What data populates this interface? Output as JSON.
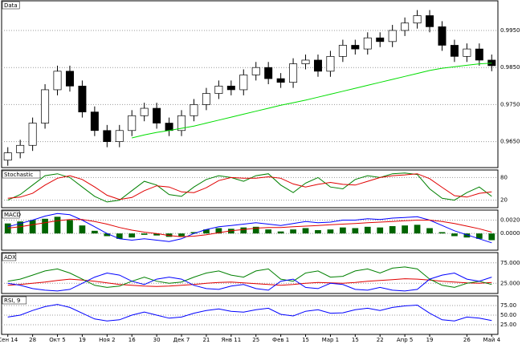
{
  "chart_data": [
    {
      "type": "candlestick",
      "title": "Data",
      "open": [
        0.96,
        0.962,
        0.964,
        0.97,
        0.979,
        0.984,
        0.98,
        0.973,
        0.968,
        0.965,
        0.968,
        0.972,
        0.974,
        0.97,
        0.968,
        0.972,
        0.975,
        0.978,
        0.98,
        0.979,
        0.983,
        0.985,
        0.982,
        0.981,
        0.986,
        0.987,
        0.984,
        0.988,
        0.991,
        0.99,
        0.993,
        0.992,
        0.995,
        0.997,
        0.999,
        0.996,
        0.991,
        0.988,
        0.99,
        0.987
      ],
      "high": [
        0.9635,
        0.9655,
        0.9715,
        0.9805,
        0.9855,
        0.9855,
        0.9815,
        0.9745,
        0.9695,
        0.9695,
        0.9735,
        0.9755,
        0.9755,
        0.9715,
        0.9735,
        0.9765,
        0.9795,
        0.9815,
        0.9815,
        0.9845,
        0.9865,
        0.9865,
        0.9835,
        0.9875,
        0.9885,
        0.9885,
        0.9895,
        0.9925,
        0.9925,
        0.9945,
        0.9945,
        0.9965,
        0.9985,
        1.0005,
        1.0005,
        0.9975,
        0.9925,
        0.9915,
        0.9915,
        0.9885
      ],
      "low": [
        0.9585,
        0.9605,
        0.9625,
        0.9685,
        0.9775,
        0.9785,
        0.9715,
        0.9665,
        0.9635,
        0.9635,
        0.9665,
        0.9705,
        0.9685,
        0.9665,
        0.9665,
        0.9705,
        0.9735,
        0.9765,
        0.9775,
        0.9775,
        0.9815,
        0.9805,
        0.9795,
        0.9795,
        0.9845,
        0.9825,
        0.9825,
        0.9865,
        0.9885,
        0.9885,
        0.9905,
        0.9905,
        0.9935,
        0.9955,
        0.9945,
        0.9895,
        0.9865,
        0.9865,
        0.9855,
        0.984
      ],
      "close": [
        0.962,
        0.964,
        0.97,
        0.979,
        0.984,
        0.98,
        0.973,
        0.968,
        0.965,
        0.968,
        0.972,
        0.974,
        0.97,
        0.968,
        0.972,
        0.975,
        0.978,
        0.98,
        0.979,
        0.983,
        0.985,
        0.982,
        0.981,
        0.986,
        0.987,
        0.984,
        0.988,
        0.991,
        0.99,
        0.993,
        0.992,
        0.995,
        0.997,
        0.999,
        0.996,
        0.991,
        0.988,
        0.99,
        0.987,
        0.9855
      ],
      "series": [
        {
          "color": "#00dd00",
          "values": [
            null,
            null,
            null,
            null,
            null,
            null,
            null,
            null,
            null,
            null,
            0.966,
            0.9668,
            0.9675,
            0.968,
            0.9686,
            0.9692,
            0.97,
            0.9708,
            0.9716,
            0.9724,
            0.9732,
            0.974,
            0.9748,
            0.9755,
            0.9762,
            0.977,
            0.9778,
            0.9786,
            0.9794,
            0.9802,
            0.981,
            0.9818,
            0.9826,
            0.9834,
            0.9842,
            0.9848,
            0.9852,
            0.9856,
            0.986,
            0.9862
          ]
        }
      ],
      "ylim": [
        0.958,
        1.003
      ],
      "yticks": [
        {
          "value": 0.965,
          "label": "0.9650"
        },
        {
          "value": 0.975,
          "label": "0.9750"
        },
        {
          "value": 0.985,
          "label": "0.9850"
        },
        {
          "value": 0.995,
          "label": "0.9950"
        }
      ]
    },
    {
      "type": "line",
      "title": "Stochastic",
      "series": [
        {
          "color": "#008000",
          "values": [
            20,
            35,
            60,
            85,
            90,
            80,
            55,
            30,
            15,
            20,
            45,
            70,
            60,
            35,
            30,
            55,
            75,
            85,
            80,
            70,
            85,
            90,
            60,
            40,
            65,
            80,
            55,
            50,
            75,
            85,
            80,
            90,
            92,
            88,
            50,
            25,
            20,
            40,
            55,
            30
          ]
        },
        {
          "color": "#e00000",
          "values": [
            25,
            28,
            38,
            60,
            78,
            85,
            75,
            55,
            33,
            22,
            27,
            45,
            58,
            55,
            42,
            40,
            53,
            72,
            80,
            78,
            78,
            82,
            78,
            63,
            55,
            62,
            67,
            62,
            60,
            70,
            80,
            85,
            87,
            90,
            77,
            54,
            32,
            28,
            38,
            42
          ]
        }
      ],
      "ylim": [
        0,
        100
      ],
      "yticks": [
        20,
        80
      ]
    },
    {
      "type": "bar",
      "title": "MACD",
      "color": "#006400",
      "values": [
        0.0015,
        0.0018,
        0.002,
        0.0022,
        0.0025,
        0.002,
        0.0012,
        0.0004,
        -0.0004,
        -0.0008,
        -0.0006,
        -0.0002,
        -0.0003,
        -0.0005,
        -0.0004,
        0.0002,
        0.0006,
        0.0008,
        0.0007,
        0.0009,
        0.001,
        0.0006,
        0.0003,
        0.0006,
        0.0008,
        0.0005,
        0.0006,
        0.0009,
        0.0008,
        0.001,
        0.0009,
        0.0011,
        0.0012,
        0.0013,
        0.0008,
        0.0002,
        -0.0004,
        -0.0006,
        -0.0008,
        -0.001
      ],
      "series": [
        {
          "color": "#0000ff",
          "values": [
            0.001,
            0.0015,
            0.002,
            0.0026,
            0.003,
            0.0028,
            0.002,
            0.001,
            0.0,
            -0.0008,
            -0.001,
            -0.0008,
            -0.001,
            -0.0012,
            -0.0008,
            0.0,
            0.0006,
            0.001,
            0.0012,
            0.0014,
            0.0016,
            0.0014,
            0.0012,
            0.0015,
            0.0018,
            0.0016,
            0.0017,
            0.002,
            0.002,
            0.0022,
            0.0021,
            0.0023,
            0.0024,
            0.0025,
            0.002,
            0.0012,
            0.0004,
            -0.0002,
            -0.0008,
            -0.0014
          ]
        },
        {
          "color": "#e00000",
          "values": [
            0.0008,
            0.001,
            0.0013,
            0.0016,
            0.0019,
            0.0021,
            0.0021,
            0.0018,
            0.0014,
            0.0009,
            0.0005,
            0.0002,
            0.0,
            -0.0003,
            -0.0005,
            -0.0004,
            -0.0002,
            0.0001,
            0.0004,
            0.0006,
            0.0008,
            0.0009,
            0.0009,
            0.001,
            0.0011,
            0.0012,
            0.0013,
            0.0014,
            0.0015,
            0.0016,
            0.0017,
            0.0018,
            0.0019,
            0.002,
            0.002,
            0.0018,
            0.0015,
            0.0011,
            0.0007,
            0.0002
          ]
        }
      ],
      "ylim": [
        -0.0025,
        0.0035
      ],
      "yticks": [
        {
          "value": 0,
          "label": "0.0000"
        },
        {
          "value": 0.002,
          "label": "0.0020"
        }
      ]
    },
    {
      "type": "line",
      "title": "ADX",
      "series": [
        {
          "color": "#e00000",
          "values": [
            20,
            22,
            25,
            28,
            32,
            35,
            33,
            30,
            26,
            22,
            20,
            18,
            17,
            18,
            20,
            22,
            25,
            27,
            28,
            26,
            24,
            22,
            20,
            22,
            25,
            27,
            26,
            25,
            27,
            30,
            32,
            34,
            36,
            35,
            33,
            30,
            28,
            26,
            25,
            27
          ]
        },
        {
          "color": "#008000",
          "values": [
            30,
            35,
            45,
            55,
            60,
            50,
            35,
            20,
            15,
            18,
            30,
            40,
            30,
            25,
            28,
            40,
            50,
            55,
            45,
            40,
            55,
            60,
            35,
            30,
            50,
            55,
            40,
            42,
            55,
            60,
            50,
            62,
            65,
            60,
            35,
            20,
            15,
            25,
            30,
            22
          ]
        },
        {
          "color": "#0000ff",
          "values": [
            25,
            20,
            12,
            8,
            6,
            10,
            25,
            40,
            50,
            45,
            30,
            22,
            35,
            40,
            35,
            20,
            12,
            10,
            18,
            22,
            12,
            8,
            30,
            35,
            15,
            12,
            25,
            22,
            10,
            8,
            15,
            8,
            6,
            10,
            35,
            45,
            50,
            35,
            30,
            40
          ]
        }
      ],
      "ylim": [
        0,
        100
      ],
      "yticks": [
        {
          "value": 25,
          "label": "25.000"
        },
        {
          "value": 75,
          "label": "75.000"
        }
      ]
    },
    {
      "type": "line",
      "title": "RSI, 9",
      "series": [
        {
          "color": "#0000ff",
          "values": [
            45,
            50,
            62,
            72,
            78,
            70,
            55,
            40,
            35,
            38,
            50,
            58,
            50,
            42,
            45,
            55,
            62,
            66,
            60,
            58,
            64,
            68,
            52,
            48,
            60,
            64,
            55,
            56,
            64,
            68,
            62,
            70,
            74,
            76,
            55,
            38,
            35,
            45,
            42,
            36
          ]
        }
      ],
      "ylim": [
        0,
        100
      ],
      "yticks": [
        {
          "value": 25,
          "label": "25.00"
        },
        {
          "value": 50,
          "label": "50.00"
        },
        {
          "value": 75,
          "label": "75.00"
        }
      ],
      "categories": [
        "Сен 14",
        null,
        "28",
        null,
        "Окт 5",
        null,
        "19",
        null,
        "Ноя 2",
        null,
        "16",
        null,
        "30",
        null,
        "Дек 7",
        null,
        "21",
        null,
        "Янв 11",
        null,
        "25",
        null,
        "Фев 1",
        null,
        "15",
        null,
        "Мар 1",
        null,
        "15",
        null,
        "22",
        null,
        "Апр 5",
        null,
        "19",
        null,
        null,
        "26",
        null,
        "Май 4"
      ]
    }
  ]
}
